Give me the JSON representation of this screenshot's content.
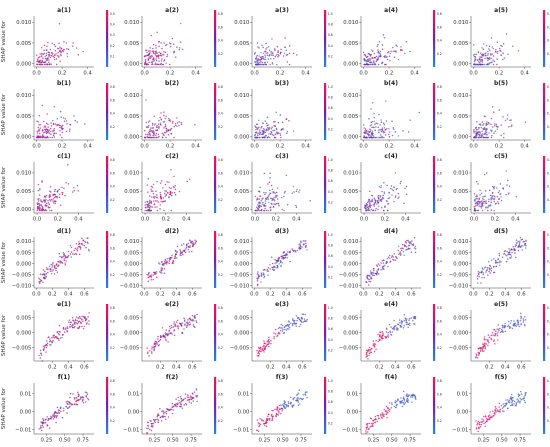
{
  "colors": {
    "low": "#1e88e5",
    "mid": "#7b1fa2",
    "high": "#ff0d57"
  },
  "chart_data": {
    "type": "scatter",
    "description_kind": "SHAP dependence plots, 6 rows x 5 columns",
    "colorbar": {
      "gradient": [
        "#1e88e5",
        "#7b1fa2",
        "#ff0d57"
      ]
    },
    "rows": [
      {
        "ylabel": "SHAP value for",
        "xlim": [
          -0.02,
          0.45
        ],
        "ylim": [
          -0.0008,
          0.0115
        ],
        "xticks": [
          "0.0",
          "0.2",
          "0.4"
        ],
        "xtick_values": [
          0.0,
          0.2,
          0.4
        ],
        "yticks": [
          "0.000",
          "0.005",
          "0.010"
        ],
        "ytick_values": [
          0.0,
          0.005,
          0.01
        ],
        "panels": [
          {
            "title": "a(1)",
            "colorbar_ticks": [
              "0.5",
              "0.4",
              "0.3",
              "0.2",
              "0.1"
            ],
            "trend": [
              [
                0.0,
                0.0004
              ],
              [
                0.15,
                0.0025
              ],
              [
                0.3,
                0.004
              ],
              [
                0.42,
                0.0035
              ]
            ]
          },
          {
            "title": "a(2)",
            "colorbar_ticks": [
              "0.8",
              "0.6",
              "0.4",
              "0.2"
            ],
            "trend": [
              [
                0.0,
                0.0004
              ],
              [
                0.15,
                0.0025
              ],
              [
                0.3,
                0.004
              ],
              [
                0.42,
                0.0035
              ]
            ]
          },
          {
            "title": "a(3)",
            "colorbar_ticks": [
              "1.0",
              "0.8",
              "0.6",
              "0.4",
              "0.2"
            ],
            "trend": [
              [
                0.0,
                0.0003
              ],
              [
                0.15,
                0.0022
              ],
              [
                0.3,
                0.0035
              ],
              [
                0.42,
                0.003
              ]
            ]
          },
          {
            "title": "a(4)",
            "colorbar_ticks": [
              "0.8",
              "0.6",
              "0.4",
              "0.2"
            ],
            "trend": [
              [
                0.0,
                0.0003
              ],
              [
                0.15,
                0.0022
              ],
              [
                0.3,
                0.0035
              ],
              [
                0.42,
                0.003
              ]
            ]
          },
          {
            "title": "a(5)",
            "colorbar_ticks": [
              "0.8",
              "0.6",
              "0.4",
              "0.2"
            ],
            "trend": [
              [
                0.0,
                0.0003
              ],
              [
                0.15,
                0.0022
              ],
              [
                0.3,
                0.0035
              ],
              [
                0.42,
                0.003
              ]
            ]
          }
        ]
      },
      {
        "ylabel": "SHAP value for",
        "xlim": [
          -0.02,
          0.45
        ],
        "ylim": [
          -0.0008,
          0.0115
        ],
        "xticks": [
          "0.0",
          "0.2",
          "0.4"
        ],
        "xtick_values": [
          0.0,
          0.2,
          0.4
        ],
        "yticks": [
          "0.000",
          "0.005",
          "0.010"
        ],
        "ytick_values": [
          0.0,
          0.005,
          0.01
        ],
        "panels": [
          {
            "title": "b(1)",
            "colorbar_ticks": [
              "0.8",
              "0.6",
              "0.4",
              "0.2"
            ],
            "trend": [
              [
                0.0,
                0.0002
              ],
              [
                0.15,
                0.0022
              ],
              [
                0.3,
                0.0035
              ],
              [
                0.42,
                0.003
              ]
            ]
          },
          {
            "title": "b(2)",
            "colorbar_ticks": [
              "0.8",
              "0.6",
              "0.4",
              "0.2"
            ],
            "trend": [
              [
                0.0,
                0.0002
              ],
              [
                0.15,
                0.0022
              ],
              [
                0.3,
                0.0035
              ],
              [
                0.42,
                0.003
              ]
            ]
          },
          {
            "title": "b(3)",
            "colorbar_ticks": [
              "1.0",
              "0.8",
              "0.6",
              "0.4",
              "0.2"
            ],
            "trend": [
              [
                0.0,
                0.0002
              ],
              [
                0.15,
                0.0018
              ],
              [
                0.3,
                0.003
              ],
              [
                0.42,
                0.0028
              ]
            ]
          },
          {
            "title": "b(4)",
            "colorbar_ticks": [
              "0.8",
              "0.6",
              "0.4",
              "0.2"
            ],
            "trend": [
              [
                0.0,
                0.0002
              ],
              [
                0.15,
                0.0018
              ],
              [
                0.3,
                0.003
              ],
              [
                0.42,
                0.0028
              ]
            ]
          },
          {
            "title": "b(5)",
            "colorbar_ticks": [
              "0.8",
              "0.6",
              "0.4",
              "0.2"
            ],
            "trend": [
              [
                0.0,
                0.0002
              ],
              [
                0.15,
                0.0018
              ],
              [
                0.3,
                0.003
              ],
              [
                0.42,
                0.0028
              ]
            ]
          }
        ]
      },
      {
        "ylabel": "SHAP value for",
        "xlim": [
          -0.03,
          0.55
        ],
        "ylim": [
          -0.001,
          0.013
        ],
        "xticks": [
          "0.0",
          "0.2",
          "0.4"
        ],
        "xtick_values": [
          0.0,
          0.2,
          0.4
        ],
        "yticks": [
          "0.000",
          "0.005",
          "0.010"
        ],
        "ytick_values": [
          0.0,
          0.005,
          0.01
        ],
        "panels": [
          {
            "title": "c(1)",
            "colorbar_ticks": [
              "0.8",
              "0.6",
              "0.4",
              "0.2"
            ],
            "trend": [
              [
                0.0,
                0.0005
              ],
              [
                0.2,
                0.004
              ],
              [
                0.35,
                0.006
              ],
              [
                0.5,
                0.005
              ]
            ]
          },
          {
            "title": "c(2)",
            "colorbar_ticks": [
              "0.8",
              "0.6",
              "0.4",
              "0.2"
            ],
            "trend": [
              [
                0.0,
                0.0005
              ],
              [
                0.2,
                0.004
              ],
              [
                0.35,
                0.006
              ],
              [
                0.5,
                0.005
              ]
            ]
          },
          {
            "title": "c(3)",
            "colorbar_ticks": [
              "1.0",
              "0.8",
              "0.6",
              "0.4",
              "0.2"
            ],
            "trend": [
              [
                0.0,
                0.0004
              ],
              [
                0.2,
                0.0035
              ],
              [
                0.35,
                0.0055
              ],
              [
                0.5,
                0.0048
              ]
            ]
          },
          {
            "title": "c(4)",
            "colorbar_ticks": [
              "0.8",
              "0.6",
              "0.4",
              "0.2"
            ],
            "trend": [
              [
                0.0,
                0.0004
              ],
              [
                0.2,
                0.0035
              ],
              [
                0.35,
                0.0055
              ],
              [
                0.5,
                0.0048
              ]
            ]
          },
          {
            "title": "c(5)",
            "colorbar_ticks": [
              "0.8",
              "0.6",
              "0.4",
              "0.2"
            ],
            "trend": [
              [
                0.0,
                0.0004
              ],
              [
                0.2,
                0.0035
              ],
              [
                0.35,
                0.0055
              ],
              [
                0.5,
                0.0048
              ]
            ]
          }
        ]
      },
      {
        "ylabel": "SHAP value for",
        "xlim": [
          -0.03,
          0.72
        ],
        "ylim": [
          -0.011,
          0.012
        ],
        "xticks": [
          "0.0",
          "0.2",
          "0.4",
          "0.6"
        ],
        "xtick_values": [
          0.0,
          0.2,
          0.4,
          0.6
        ],
        "yticks": [
          "−0.010",
          "−0.005",
          "0.000",
          "0.005",
          "0.010"
        ],
        "ytick_values": [
          -0.01,
          -0.005,
          0.0,
          0.005,
          0.01
        ],
        "panels": [
          {
            "title": "d(1)",
            "colorbar_ticks": [
              "0.8",
              "0.6",
              "0.4",
              "0.2"
            ],
            "trend": [
              [
                0.0,
                -0.008
              ],
              [
                0.2,
                -0.002
              ],
              [
                0.4,
                0.004
              ],
              [
                0.6,
                0.009
              ]
            ]
          },
          {
            "title": "d(2)",
            "colorbar_ticks": [
              "0.8",
              "0.6",
              "0.4",
              "0.2"
            ],
            "trend": [
              [
                0.0,
                -0.008
              ],
              [
                0.2,
                -0.002
              ],
              [
                0.4,
                0.004
              ],
              [
                0.6,
                0.009
              ]
            ]
          },
          {
            "title": "d(3)",
            "colorbar_ticks": [
              "1.0",
              "0.8",
              "0.6",
              "0.4",
              "0.2"
            ],
            "trend": [
              [
                0.0,
                -0.008
              ],
              [
                0.2,
                -0.002
              ],
              [
                0.4,
                0.004
              ],
              [
                0.6,
                0.009
              ]
            ]
          },
          {
            "title": "d(4)",
            "colorbar_ticks": [
              "0.8",
              "0.6",
              "0.4",
              "0.2"
            ],
            "trend": [
              [
                0.0,
                -0.008
              ],
              [
                0.2,
                -0.002
              ],
              [
                0.4,
                0.004
              ],
              [
                0.6,
                0.009
              ]
            ]
          },
          {
            "title": "d(5)",
            "colorbar_ticks": [
              "0.8",
              "0.6",
              "0.4",
              "0.2"
            ],
            "trend": [
              [
                0.0,
                -0.008
              ],
              [
                0.2,
                -0.002
              ],
              [
                0.4,
                0.004
              ],
              [
                0.6,
                0.009
              ]
            ]
          }
        ]
      },
      {
        "ylabel": "SHAP value for",
        "xlim": [
          -0.03,
          0.72
        ],
        "ylim": [
          -0.0095,
          0.0075
        ],
        "xticks": [
          "0.2",
          "0.4",
          "0.6"
        ],
        "xtick_values": [
          0.2,
          0.4,
          0.6
        ],
        "yticks": [
          "−0.005",
          "0.000",
          "0.005"
        ],
        "ytick_values": [
          -0.005,
          0.0,
          0.005
        ],
        "panels": [
          {
            "title": "e(1)",
            "colorbar_ticks": [
              "0.8",
              "0.6",
              "0.4",
              "0.2"
            ],
            "trend": [
              [
                0.05,
                -0.007
              ],
              [
                0.2,
                -0.002
              ],
              [
                0.4,
                0.002
              ],
              [
                0.65,
                0.0045
              ]
            ]
          },
          {
            "title": "e(2)",
            "colorbar_ticks": [
              "0.8",
              "0.6",
              "0.4",
              "0.2"
            ],
            "trend": [
              [
                0.05,
                -0.007
              ],
              [
                0.2,
                -0.002
              ],
              [
                0.4,
                0.002
              ],
              [
                0.65,
                0.0045
              ]
            ]
          },
          {
            "title": "e(3)",
            "colorbar_ticks": [
              "1.0",
              "0.8",
              "0.6",
              "0.4",
              "0.2"
            ],
            "trend": [
              [
                0.05,
                -0.007
              ],
              [
                0.2,
                -0.002
              ],
              [
                0.4,
                0.002
              ],
              [
                0.65,
                0.0045
              ]
            ]
          },
          {
            "title": "e(4)",
            "colorbar_ticks": [
              "0.8",
              "0.6",
              "0.4",
              "0.2"
            ],
            "trend": [
              [
                0.05,
                -0.007
              ],
              [
                0.2,
                -0.002
              ],
              [
                0.4,
                0.002
              ],
              [
                0.65,
                0.0045
              ]
            ]
          },
          {
            "title": "e(5)",
            "colorbar_ticks": [
              "0.8",
              "0.6",
              "0.4",
              "0.2"
            ],
            "trend": [
              [
                0.05,
                -0.007
              ],
              [
                0.2,
                -0.002
              ],
              [
                0.4,
                0.002
              ],
              [
                0.65,
                0.0045
              ]
            ]
          }
        ]
      },
      {
        "ylabel": "SHAP value for",
        "xlim": [
          0.08,
          0.9
        ],
        "ylim": [
          -0.0125,
          0.016
        ],
        "xticks": [
          "0.25",
          "0.50",
          "0.75"
        ],
        "xtick_values": [
          0.25,
          0.5,
          0.75
        ],
        "yticks": [
          "−0.01",
          "0.00",
          "0.01"
        ],
        "ytick_values": [
          -0.01,
          0.0,
          0.01
        ],
        "panels": [
          {
            "title": "f(1)",
            "colorbar_ticks": [
              "0.8",
              "0.6",
              "0.4",
              "0.2"
            ],
            "trend": [
              [
                0.15,
                -0.009
              ],
              [
                0.35,
                -0.002
              ],
              [
                0.55,
                0.004
              ],
              [
                0.8,
                0.009
              ]
            ]
          },
          {
            "title": "f(2)",
            "colorbar_ticks": [
              "0.8",
              "0.6",
              "0.4",
              "0.2"
            ],
            "trend": [
              [
                0.15,
                -0.009
              ],
              [
                0.35,
                -0.002
              ],
              [
                0.55,
                0.004
              ],
              [
                0.8,
                0.009
              ]
            ]
          },
          {
            "title": "f(3)",
            "colorbar_ticks": [
              "1.0",
              "0.8",
              "0.6",
              "0.4",
              "0.2"
            ],
            "trend": [
              [
                0.15,
                -0.009
              ],
              [
                0.35,
                -0.002
              ],
              [
                0.55,
                0.004
              ],
              [
                0.8,
                0.009
              ]
            ]
          },
          {
            "title": "f(4)",
            "colorbar_ticks": [
              "0.8",
              "0.6",
              "0.4",
              "0.2"
            ],
            "trend": [
              [
                0.15,
                -0.009
              ],
              [
                0.35,
                -0.002
              ],
              [
                0.55,
                0.004
              ],
              [
                0.8,
                0.009
              ]
            ]
          },
          {
            "title": "f(5)",
            "colorbar_ticks": [
              "0.8",
              "0.6",
              "0.4",
              "0.2"
            ],
            "trend": [
              [
                0.15,
                -0.009
              ],
              [
                0.35,
                -0.002
              ],
              [
                0.55,
                0.004
              ],
              [
                0.8,
                0.009
              ]
            ]
          }
        ]
      }
    ]
  }
}
